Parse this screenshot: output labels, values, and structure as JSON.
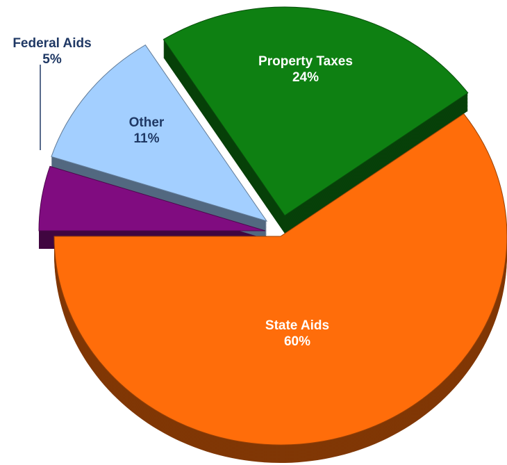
{
  "chart_data": {
    "type": "pie",
    "categories": [
      "Property Taxes",
      "State Aids",
      "Federal Aids",
      "Other"
    ],
    "values": [
      24,
      60,
      5,
      11
    ],
    "value_labels": [
      "24%",
      "60%",
      "5%",
      "11%"
    ],
    "colors": [
      "#0e8012",
      "#ff6d0a",
      "#800c80",
      "#a3cfff"
    ]
  }
}
